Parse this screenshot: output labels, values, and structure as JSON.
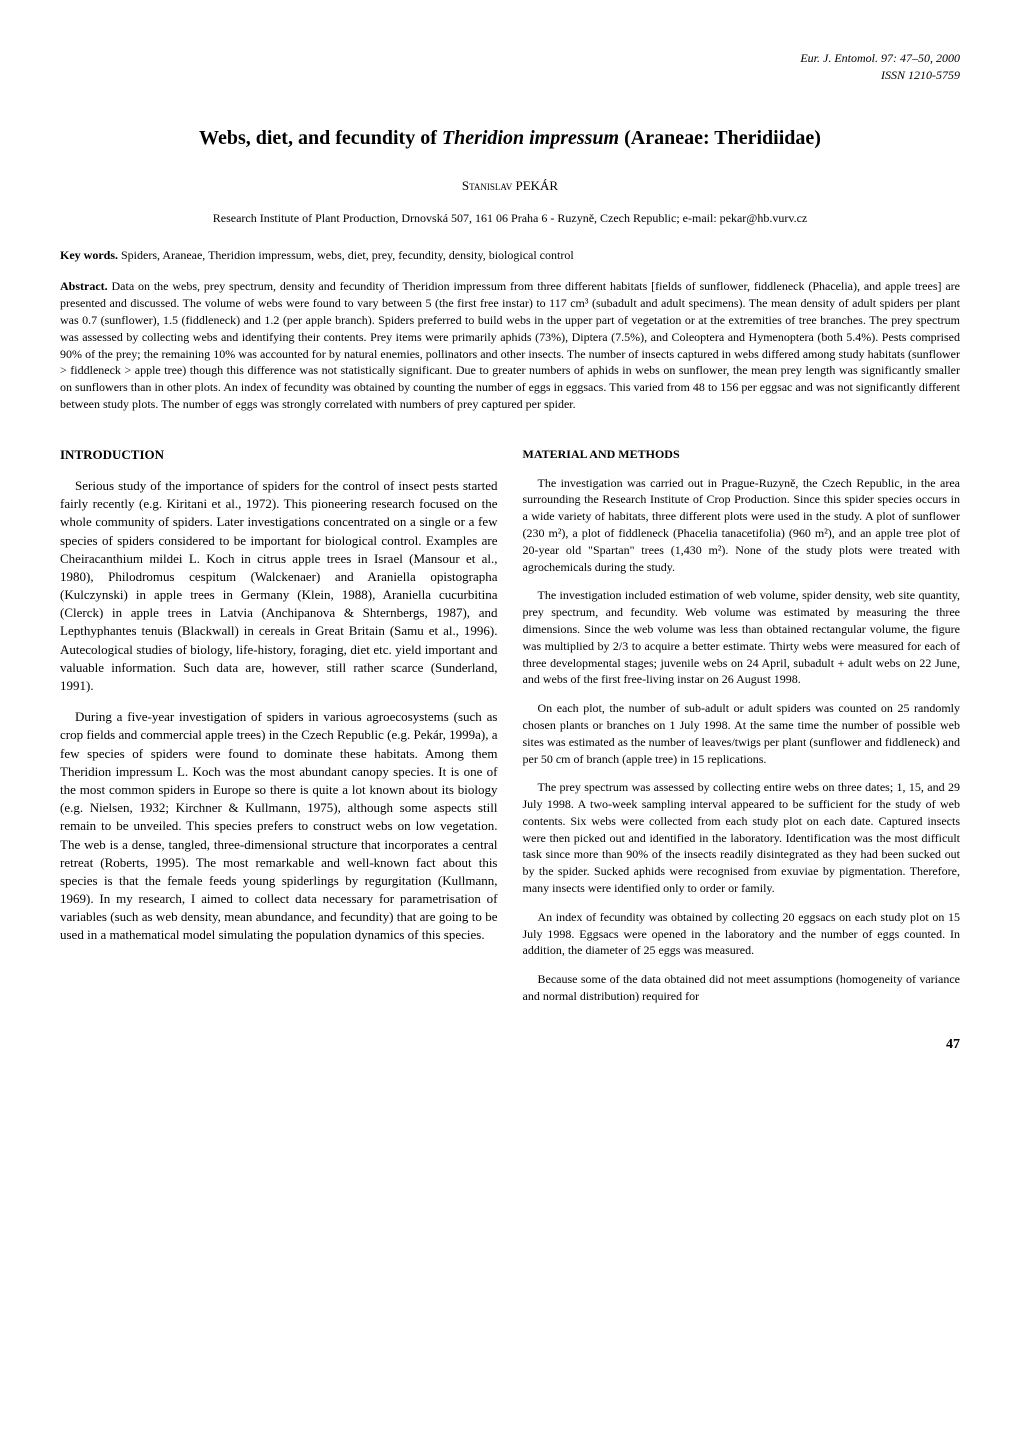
{
  "header": {
    "journal": "Eur. J. Entomol.",
    "volume_pages": "97: 47–50, 2000",
    "issn": "ISSN 1210-5759"
  },
  "title": {
    "pre": "Webs, diet, and fecundity of ",
    "species": "Theridion impressum",
    "post": " (Araneae: Theridiidae)"
  },
  "author": "Stanislav PEKÁR",
  "affiliation": "Research Institute of Plant Production, Drnovská 507, 161 06 Praha 6 - Ruzyně, Czech Republic; e-mail: pekar@hb.vurv.cz",
  "keywords": {
    "label": "Key words.",
    "text": " Spiders, Araneae, Theridion impressum, webs, diet, prey, fecundity, density, biological control"
  },
  "abstract": {
    "label": "Abstract.",
    "text": " Data on the webs, prey spectrum, density and fecundity of Theridion impressum from three different habitats [fields of sunflower, fiddleneck (Phacelia), and apple trees] are presented and discussed. The volume of webs were found to vary between 5 (the first free instar) to 117 cm³ (subadult and adult specimens). The mean density of adult spiders per plant was 0.7 (sunflower), 1.5 (fiddleneck) and 1.2 (per apple branch). Spiders preferred to build webs in the upper part of vegetation or at the extremities of tree branches. The prey spectrum was assessed by collecting webs and identifying their contents. Prey items were primarily aphids (73%), Diptera (7.5%), and Coleoptera and Hymenoptera (both 5.4%). Pests comprised 90% of the prey; the remaining 10% was accounted for by natural enemies, pollinators and other insects. The number of insects captured in webs differed among study habitats (sunflower > fiddleneck > apple tree) though this difference was not statistically significant. Due to greater numbers of aphids in webs on sunflower, the mean prey length was significantly smaller on sunflowers than in other plots. An index of fecundity was obtained by counting the number of eggs in eggsacs. This varied from 48 to 156 per eggsac and was not significantly different between study plots. The number of eggs was strongly correlated with numbers of prey captured per spider."
  },
  "introduction": {
    "heading": "INTRODUCTION",
    "p1": "Serious study of the importance of spiders for the control of insect pests started fairly recently (e.g. Kiritani et al., 1972). This pioneering research focused on the whole community of spiders. Later investigations concentrated on a single or a few species of spiders considered to be important for biological control. Examples are Cheiracanthium mildei L. Koch in citrus apple trees in Israel (Mansour et al., 1980), Philodromus cespitum (Walckenaer) and Araniella opistographa (Kulczynski) in apple trees in Germany (Klein, 1988), Araniella cucurbitina (Clerck) in apple trees in Latvia (Anchipanova & Shternbergs, 1987), and Lepthyphantes tenuis (Blackwall) in cereals in Great Britain (Samu et al., 1996). Autecological studies of biology, life-history, foraging, diet etc. yield important and valuable information. Such data are, however, still rather scarce (Sunderland, 1991).",
    "p2": "During a five-year investigation of spiders in various agroecosystems (such as crop fields and commercial apple trees) in the Czech Republic (e.g. Pekár, 1999a), a few species of spiders were found to dominate these habitats. Among them Theridion impressum L. Koch was the most abundant canopy species. It is one of the most common spiders in Europe so there is quite a lot known about its biology (e.g. Nielsen, 1932; Kirchner & Kullmann, 1975), although some aspects still remain to be unveiled. This species prefers to construct webs on low vegetation. The web is a dense, tangled, three-dimensional structure that incorporates a central retreat (Roberts, 1995). The most remarkable and well-known fact about this species is that the female feeds young spiderlings by regurgitation (Kullmann, 1969). In my research, I aimed to collect data necessary for parametrisation of variables (such as web density, mean abundance, and fecundity) that are going to be used in a mathematical model simulating the population dynamics of this species."
  },
  "methods": {
    "heading": "MATERIAL AND METHODS",
    "p1": "The investigation was carried out in Prague-Ruzyně, the Czech Republic, in the area surrounding the Research Institute of Crop Production. Since this spider species occurs in a wide variety of habitats, three different plots were used in the study. A plot of sunflower (230 m²), a plot of fiddleneck (Phacelia tanacetifolia) (960 m²), and an apple tree plot of 20-year old \"Spartan\" trees (1,430 m²). None of the study plots were treated with agrochemicals during the study.",
    "p2": "The investigation included estimation of web volume, spider density, web site quantity, prey spectrum, and fecundity. Web volume was estimated by measuring the three dimensions. Since the web volume was less than obtained rectangular volume, the figure was multiplied by 2/3 to acquire a better estimate. Thirty webs were measured for each of three developmental stages; juvenile webs on 24 April, subadult + adult webs on 22 June, and webs of the first free-living instar on 26 August 1998.",
    "p3": "On each plot, the number of sub-adult or adult spiders was counted on 25 randomly chosen plants or branches on 1 July 1998. At the same time the number of possible web sites was estimated as the number of leaves/twigs per plant (sunflower and fiddleneck) and per 50 cm of branch (apple tree) in 15 replications.",
    "p4": "The prey spectrum was assessed by collecting entire webs on three dates; 1, 15, and 29 July 1998. A two-week sampling interval appeared to be sufficient for the study of web contents. Six webs were collected from each study plot on each date. Captured insects were then picked out and identified in the laboratory. Identification was the most difficult task since more than 90% of the insects readily disintegrated as they had been sucked out by the spider. Sucked aphids were recognised from exuviae by pigmentation. Therefore, many insects were identified only to order or family.",
    "p5": "An index of fecundity was obtained by collecting 20 eggsacs on each study plot on 15 July 1998. Eggsacs were opened in the laboratory and the number of eggs counted. In addition, the diameter of 25 eggs was measured.",
    "p6": "Because some of the data obtained did not meet assumptions (homogeneity of variance and normal distribution) required for"
  },
  "page_number": "47"
}
